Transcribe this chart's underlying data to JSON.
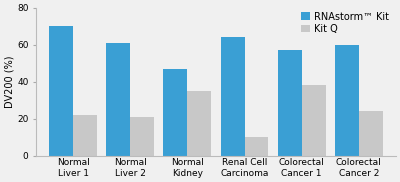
{
  "categories": [
    "Normal\nLiver 1",
    "Normal\nLiver 2",
    "Normal\nKidney",
    "Renal Cell\nCarcinoma",
    "Colorectal\nCancer 1",
    "Colorectal\nCancer 2"
  ],
  "rnastorm_values": [
    70,
    61,
    47,
    64,
    57,
    60
  ],
  "kitq_values": [
    22,
    21,
    35,
    10,
    38,
    24
  ],
  "rnastorm_color": "#3a9fd4",
  "kitq_color": "#c8c8c8",
  "ylabel": "DV200 (%)",
  "ylim": [
    0,
    80
  ],
  "yticks": [
    0,
    20,
    40,
    60,
    80
  ],
  "legend_labels": [
    "RNAstorm™ Kit",
    "Kit Q"
  ],
  "bar_width": 0.42,
  "background_color": "#f0f0f0",
  "axis_fontsize": 7,
  "tick_fontsize": 6.5,
  "legend_fontsize": 7
}
